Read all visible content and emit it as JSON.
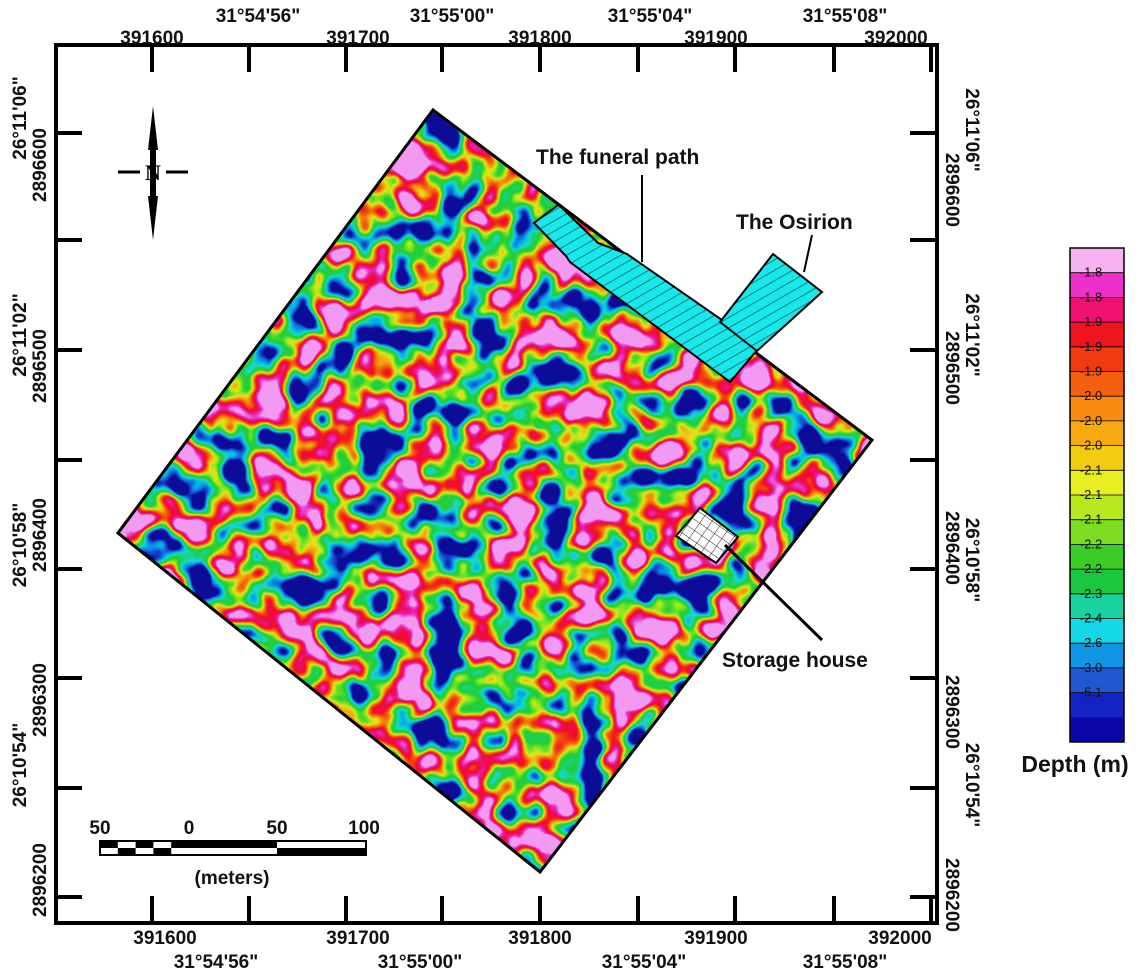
{
  "map": {
    "top_utm_labels": [
      "391600",
      "391700",
      "391800",
      "391900",
      "392000"
    ],
    "top_dms_labels": [
      "31°54'56\"",
      "31°55'00\"",
      "31°55'04\"",
      "31°55'08\""
    ],
    "bottom_utm_labels": [
      "391600",
      "391700",
      "391800",
      "391900",
      "392000"
    ],
    "bottom_dms_labels": [
      "31°54'56\"",
      "31°55'00\"",
      "31°55'04\"",
      "31°55'08\""
    ],
    "left_utm_labels": [
      "2896600",
      "2896500",
      "2896400",
      "2896300",
      "2896200"
    ],
    "left_dms_labels": [
      "26°11'06\"",
      "26°11'02\"",
      "26°10'58\"",
      "26°10'54\""
    ],
    "right_utm_labels": [
      "2896600",
      "2896500",
      "2896400",
      "2896300",
      "2896200"
    ],
    "right_dms_labels": [
      "26°11'06\"",
      "26°11'02\"",
      "26°10'58\"",
      "26°10'54\""
    ],
    "north_arrow_letter": "N",
    "annotations": {
      "funeral_path": "The funeral path",
      "osirion": "The Osirion",
      "storage_house": "Storage house"
    },
    "scale_bar": {
      "ticks": [
        "50",
        "0",
        "50",
        "100"
      ],
      "unit": "(meters)"
    }
  },
  "legend": {
    "title": "Depth (m)",
    "values": [
      "-1.8",
      "-1.8",
      "-1.9",
      "-1.9",
      "-1.9",
      "-2.0",
      "-2.0",
      "-2.0",
      "-2.1",
      "-2.1",
      "-2.1",
      "-2.2",
      "-2.2",
      "-2.3",
      "-2.4",
      "-2.6",
      "-3.0",
      "-5.1"
    ],
    "colors": [
      "#f7b4f0",
      "#ee2fc8",
      "#f01070",
      "#ee1420",
      "#f03a10",
      "#f46010",
      "#f78a10",
      "#f6aa10",
      "#f2cc10",
      "#e8ee20",
      "#b8e820",
      "#7cdc20",
      "#3ccc28",
      "#1ac840",
      "#18d2a0",
      "#14d8e8",
      "#1096e4",
      "#2058d0",
      "#1424c4",
      "#0c08a8"
    ]
  },
  "colors": {
    "structure_fill": "#19e8ea",
    "outline": "#000000"
  }
}
